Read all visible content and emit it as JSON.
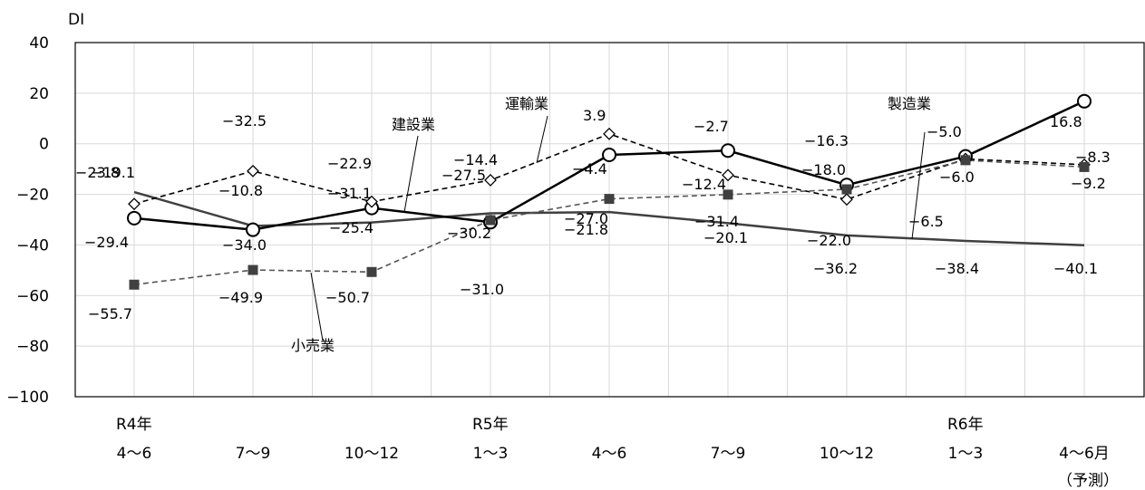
{
  "chart_data": {
    "type": "line",
    "ylabel": "DI",
    "ylim": [
      -100,
      40
    ],
    "yticks": [
      40,
      20,
      0,
      -20,
      -40,
      -60,
      -80,
      -100
    ],
    "ytick_labels": [
      "40",
      "20",
      "0",
      "−20",
      "−40",
      "−60",
      "−80",
      "−100"
    ],
    "grid": true,
    "categories": [
      "4～6",
      "7～9",
      "10～12",
      "1～3",
      "4～6",
      "7～9",
      "10～12",
      "1～3",
      "4～6月"
    ],
    "year_labels": [
      {
        "index": 0,
        "text": "R4年"
      },
      {
        "index": 3,
        "text": "R5年"
      },
      {
        "index": 7,
        "text": "R6年"
      }
    ],
    "forecast_note": "（予測）",
    "series": [
      {
        "name": "製造業",
        "color": "#404040",
        "line": "solid-thin",
        "marker": "none",
        "values": [
          -19.1,
          -32.5,
          -31.1,
          -27.5,
          -27.0,
          -31.4,
          -36.2,
          -38.4,
          -40.1
        ],
        "labels": [
          "−19.1",
          "−32.5",
          "−31.1",
          "−27.5",
          "−27.0",
          "−31.4",
          "−36.2",
          "−38.4",
          "−40.1"
        ]
      },
      {
        "name": "建設業",
        "color": "#000000",
        "line": "solid-thick",
        "marker": "circle",
        "values": [
          -29.4,
          -34.0,
          -25.4,
          -31.0,
          -4.4,
          -2.7,
          -16.3,
          -5.0,
          16.8
        ],
        "labels": [
          "−29.4",
          "−34.0",
          "−25.4",
          "−31.0",
          "−4.4",
          "−2.7",
          "−16.3",
          "−5.0",
          "16.8"
        ]
      },
      {
        "name": "運輸業",
        "color": "#000000",
        "line": "dashed",
        "marker": "diamond",
        "values": [
          -23.8,
          -10.8,
          -22.9,
          -14.4,
          3.9,
          -12.4,
          -22.0,
          -6.0,
          -8.3
        ],
        "labels": [
          "−23.8",
          "−10.8",
          "−22.9",
          "−14.4",
          "3.9",
          "−12.4",
          "−22.0",
          "−6.0",
          "−8.3"
        ]
      },
      {
        "name": "小売業",
        "color": "#404040",
        "line": "dashed-gray",
        "marker": "square",
        "values": [
          -55.7,
          -49.9,
          -50.7,
          -30.2,
          -21.8,
          -20.1,
          -18.0,
          -6.5,
          -9.2
        ],
        "labels": [
          "−55.7",
          "−49.9",
          "−50.7",
          "−30.2",
          "−21.8",
          "−20.1",
          "−18.0",
          "−6.5",
          "−9.2"
        ]
      }
    ]
  }
}
